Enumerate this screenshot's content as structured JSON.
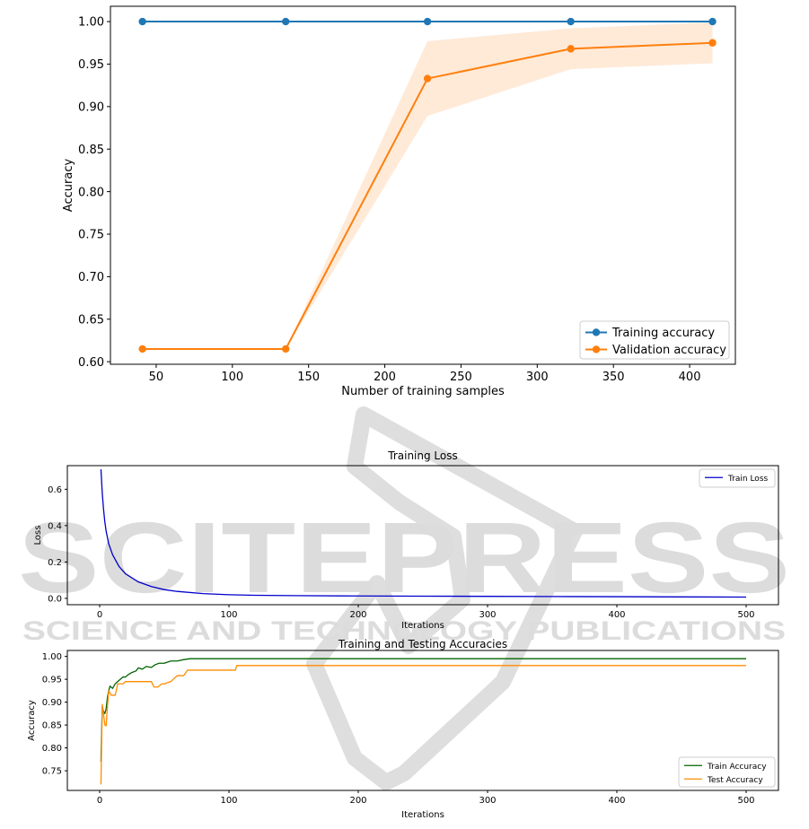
{
  "watermark": {
    "big": "SCITEPRESS",
    "small": "SCIENCE AND TECHNOLOGY PUBLICATIONS",
    "color": "#dcdcdc"
  },
  "chart_data": [
    {
      "type": "line",
      "title": "",
      "xlabel": "Number of training samples",
      "ylabel": "Accuracy",
      "xlim": [
        20,
        430
      ],
      "ylim": [
        0.597,
        1.018
      ],
      "xticks": [
        50,
        100,
        150,
        200,
        250,
        300,
        350,
        400
      ],
      "yticks": [
        0.6,
        0.65,
        0.7,
        0.75,
        0.8,
        0.85,
        0.9,
        0.95,
        1.0
      ],
      "x": [
        41,
        135,
        228,
        322,
        415
      ],
      "series": [
        {
          "name": "Training accuracy",
          "color": "#1f77b4",
          "values": [
            1.0,
            1.0,
            1.0,
            1.0,
            1.0
          ]
        },
        {
          "name": "Validation accuracy",
          "color": "#ff7f0e",
          "values": [
            0.615,
            0.615,
            0.933,
            0.968,
            0.975
          ],
          "band_low": [
            0.615,
            0.615,
            0.889,
            0.944,
            0.951
          ],
          "band_high": [
            0.615,
            0.615,
            0.977,
            0.992,
            0.999
          ]
        }
      ],
      "legend": "lower right",
      "grid": false
    },
    {
      "type": "line",
      "title": "Training Loss",
      "xlabel": "Iterations",
      "ylabel": "Loss",
      "xlim": [
        -25,
        525
      ],
      "ylim": [
        -0.035,
        0.73
      ],
      "xticks": [
        0,
        100,
        200,
        300,
        400,
        500
      ],
      "yticks": [
        0.0,
        0.2,
        0.4,
        0.6
      ],
      "series": [
        {
          "name": "Train Loss",
          "color": "#0000cc",
          "x": [
            1,
            2,
            3,
            4,
            5,
            7,
            10,
            15,
            20,
            30,
            40,
            50,
            60,
            80,
            100,
            120,
            150,
            200,
            250,
            300,
            350,
            400,
            450,
            500
          ],
          "values": [
            0.71,
            0.58,
            0.49,
            0.42,
            0.37,
            0.3,
            0.24,
            0.175,
            0.135,
            0.09,
            0.065,
            0.048,
            0.038,
            0.026,
            0.02,
            0.017,
            0.015,
            0.013,
            0.012,
            0.011,
            0.01,
            0.009,
            0.008,
            0.007
          ]
        }
      ],
      "legend": "upper right",
      "grid": false
    },
    {
      "type": "line",
      "title": "Training and Testing Accuracies",
      "xlabel": "Iterations",
      "ylabel": "Accuracy",
      "xlim": [
        -25,
        525
      ],
      "ylim": [
        0.707,
        1.013
      ],
      "xticks": [
        0,
        100,
        200,
        300,
        400,
        500
      ],
      "yticks": [
        0.75,
        0.8,
        0.85,
        0.9,
        0.95,
        1.0
      ],
      "series": [
        {
          "name": "Train Accuracy",
          "color": "#006400",
          "x": [
            1,
            2,
            3,
            4,
            5,
            6,
            7,
            8,
            10,
            12,
            14,
            16,
            18,
            20,
            22,
            25,
            28,
            30,
            33,
            36,
            40,
            43,
            46,
            50,
            55,
            60,
            65,
            70,
            80,
            100,
            200,
            300,
            400,
            500
          ],
          "values": [
            0.77,
            0.89,
            0.88,
            0.875,
            0.885,
            0.91,
            0.925,
            0.935,
            0.93,
            0.94,
            0.945,
            0.95,
            0.955,
            0.955,
            0.96,
            0.965,
            0.968,
            0.975,
            0.972,
            0.978,
            0.976,
            0.982,
            0.985,
            0.985,
            0.99,
            0.99,
            0.993,
            0.995,
            0.995,
            0.995,
            0.995,
            0.995,
            0.995,
            0.995
          ]
        },
        {
          "name": "Test Accuracy",
          "color": "#ff8c00",
          "x": [
            1,
            2,
            3,
            4,
            5,
            6,
            7,
            8,
            9,
            10,
            12,
            14,
            16,
            18,
            20,
            25,
            30,
            35,
            40,
            42,
            45,
            48,
            50,
            55,
            60,
            65,
            68,
            75,
            90,
            105,
            106,
            200,
            300,
            400,
            500
          ],
          "values": [
            0.72,
            0.895,
            0.875,
            0.85,
            0.848,
            0.89,
            0.925,
            0.92,
            0.915,
            0.915,
            0.915,
            0.94,
            0.94,
            0.94,
            0.945,
            0.945,
            0.945,
            0.945,
            0.945,
            0.933,
            0.933,
            0.94,
            0.94,
            0.945,
            0.958,
            0.958,
            0.97,
            0.97,
            0.97,
            0.97,
            0.98,
            0.98,
            0.98,
            0.98,
            0.98
          ]
        }
      ],
      "legend": "lower right",
      "grid": false
    }
  ]
}
